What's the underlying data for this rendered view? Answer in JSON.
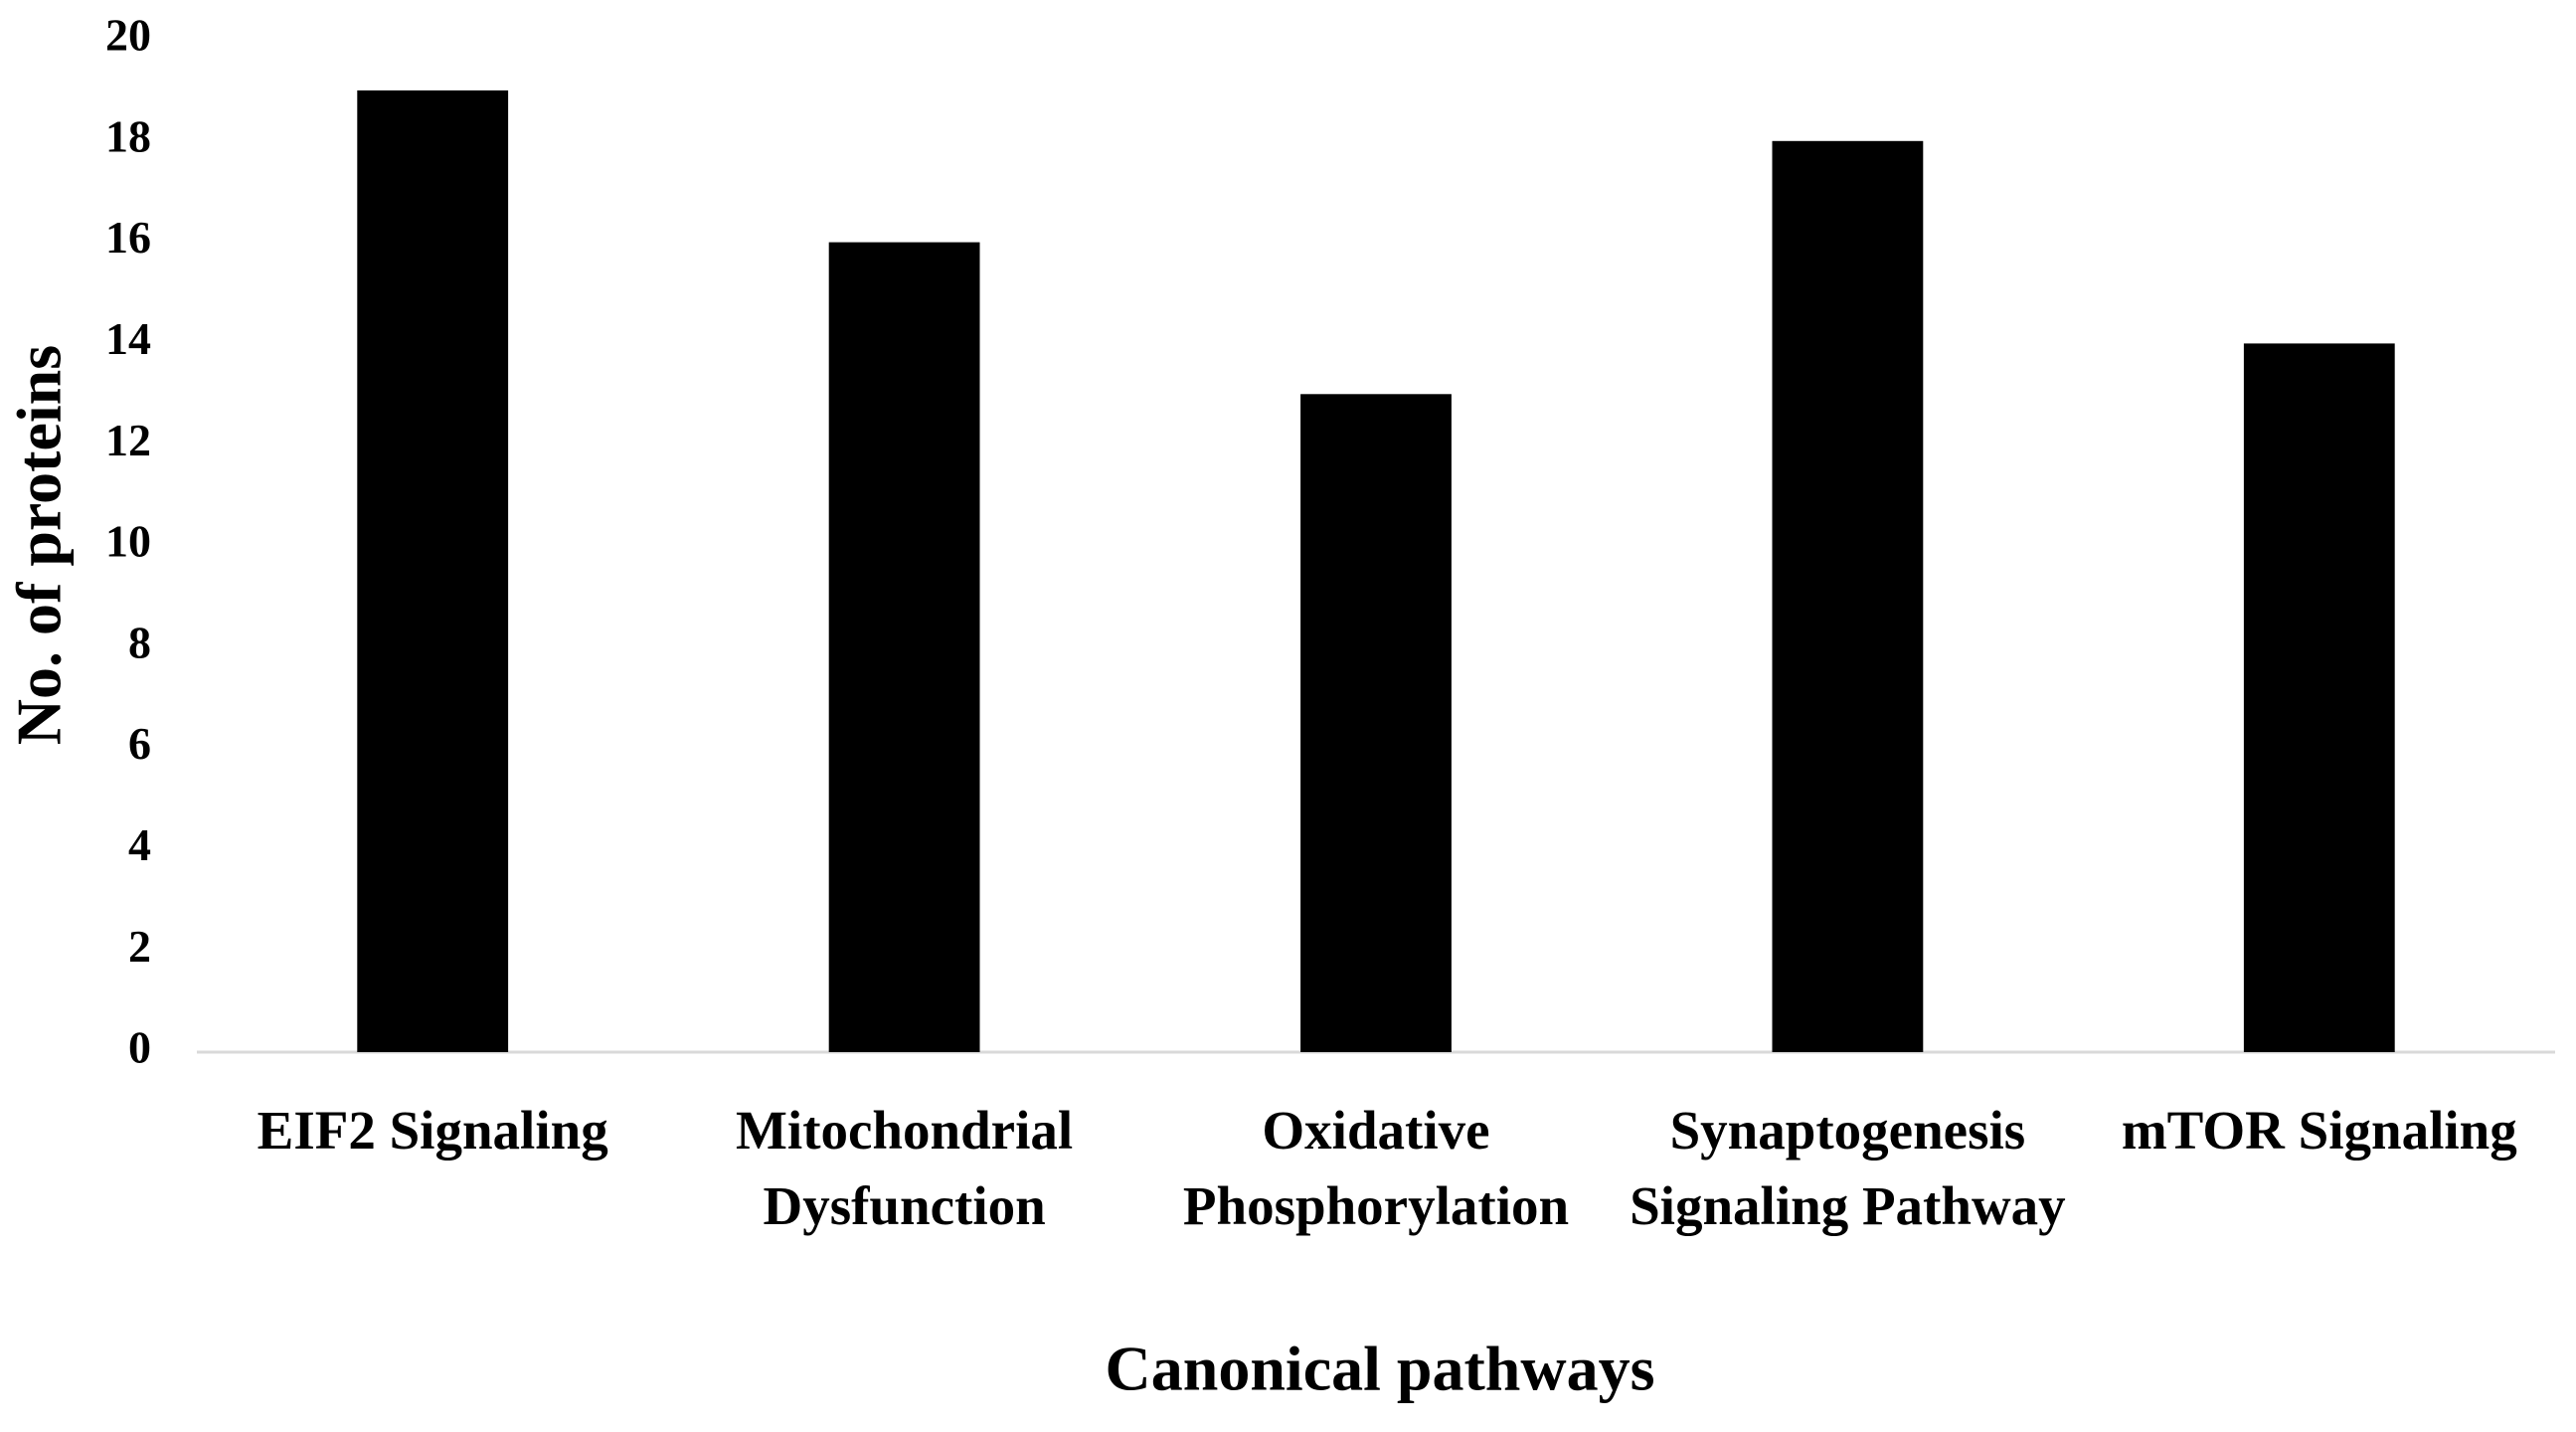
{
  "chart_data": {
    "type": "bar",
    "x_label": "Canonical pathways",
    "y_label": "No. of proteins",
    "categories": [
      "EIF2 Signaling",
      "Mitochondrial Dysfunction",
      "Oxidative Phosphorylation",
      "Synaptogenesis Signaling Pathway",
      "mTOR Signaling"
    ],
    "values": [
      19,
      16,
      13,
      18,
      14
    ],
    "color": "#000000",
    "ylim": [
      0,
      20
    ],
    "yticks": [
      0,
      2,
      4,
      6,
      8,
      10,
      12,
      14,
      16,
      18,
      20
    ],
    "grid": false
  }
}
